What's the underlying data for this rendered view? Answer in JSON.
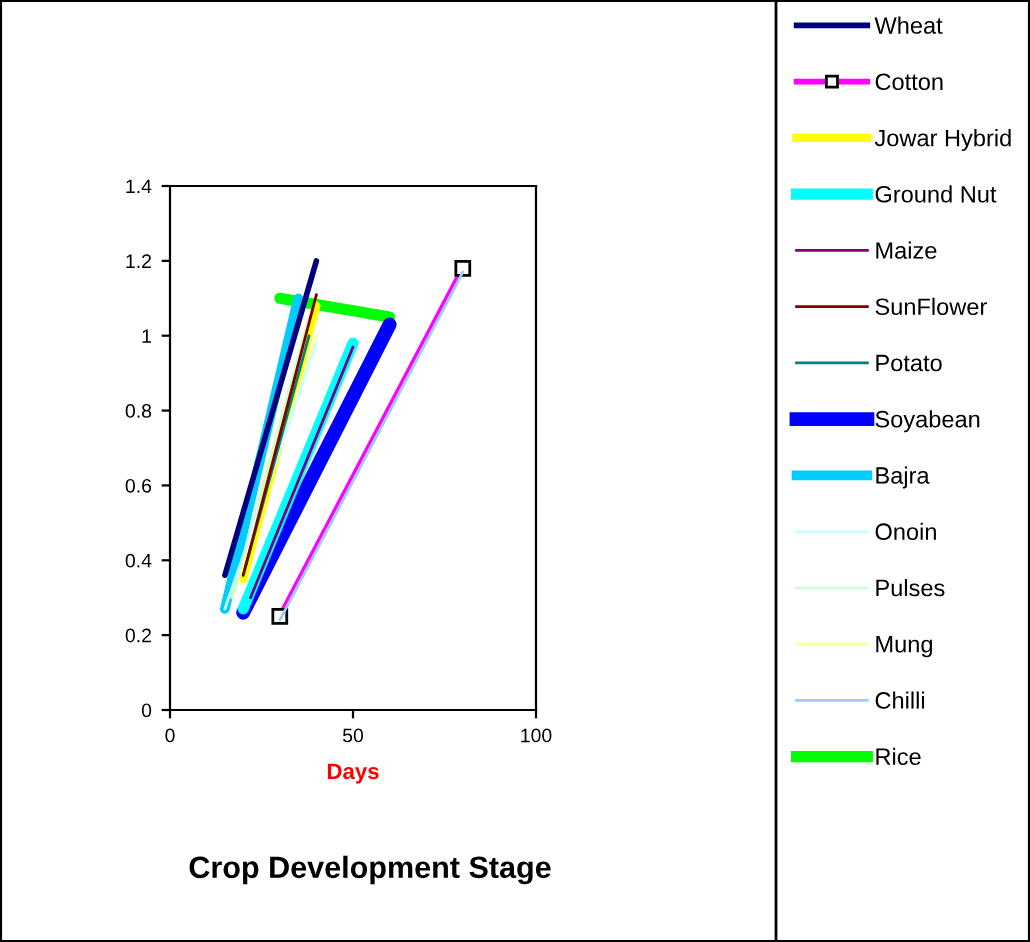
{
  "chart_data": {
    "type": "line",
    "title": "Crop Development Stage",
    "xlabel": "Days",
    "xlim": [
      0,
      100
    ],
    "xticks": [
      0,
      50,
      100
    ],
    "ylim": [
      0,
      1.4
    ],
    "yticks": [
      0,
      0.2,
      0.4,
      0.6,
      0.8,
      1,
      1.2,
      1.4
    ],
    "grid": false,
    "legend": "right",
    "marker": "none",
    "line_style": "solid",
    "series": [
      {
        "name": "Wheat",
        "color": "#000080",
        "x": [
          15,
          40
        ],
        "values": [
          0.36,
          1.2
        ]
      },
      {
        "name": "Cotton",
        "color": "#ff00ff",
        "x": [
          30,
          80
        ],
        "values": [
          0.25,
          1.18
        ],
        "marker": "square"
      },
      {
        "name": "Jowar Hybrid",
        "color": "#ffff00",
        "x": [
          20,
          40
        ],
        "values": [
          0.35,
          1.08
        ]
      },
      {
        "name": "Ground Nut",
        "color": "#00ffff",
        "x": [
          20,
          50
        ],
        "values": [
          0.27,
          0.98
        ]
      },
      {
        "name": "Maize",
        "color": "#800080",
        "x": [
          22,
          50
        ],
        "values": [
          0.3,
          0.97
        ]
      },
      {
        "name": "SunFlower",
        "color": "#800000",
        "x": [
          20,
          40
        ],
        "values": [
          0.36,
          1.11
        ]
      },
      {
        "name": "Potato",
        "color": "#008080",
        "x": [
          20,
          38
        ],
        "values": [
          0.36,
          1.0
        ]
      },
      {
        "name": "Soyabean",
        "color": "#0000ff",
        "x": [
          20,
          60
        ],
        "values": [
          0.26,
          1.03
        ]
      },
      {
        "name": "Bajra",
        "color": "#00ccff",
        "x": [
          15,
          35
        ],
        "values": [
          0.27,
          1.1
        ]
      },
      {
        "name": "Onoin",
        "color": "#ccffff",
        "x": [
          15,
          40
        ],
        "values": [
          0.27,
          0.98
        ]
      },
      {
        "name": "Pulses",
        "color": "#ccffcc",
        "x": [
          17,
          38
        ],
        "values": [
          0.3,
          1.05
        ]
      },
      {
        "name": "Mung",
        "color": "#ffff99",
        "x": [
          17,
          40
        ],
        "values": [
          0.3,
          1.0
        ]
      },
      {
        "name": "Chilli",
        "color": "#99ccff",
        "x": [
          30,
          80
        ],
        "values": [
          0.24,
          1.17
        ]
      },
      {
        "name": "Rice",
        "color": "#00ff00",
        "x": [
          30,
          60
        ],
        "values": [
          1.1,
          1.05
        ]
      }
    ]
  }
}
